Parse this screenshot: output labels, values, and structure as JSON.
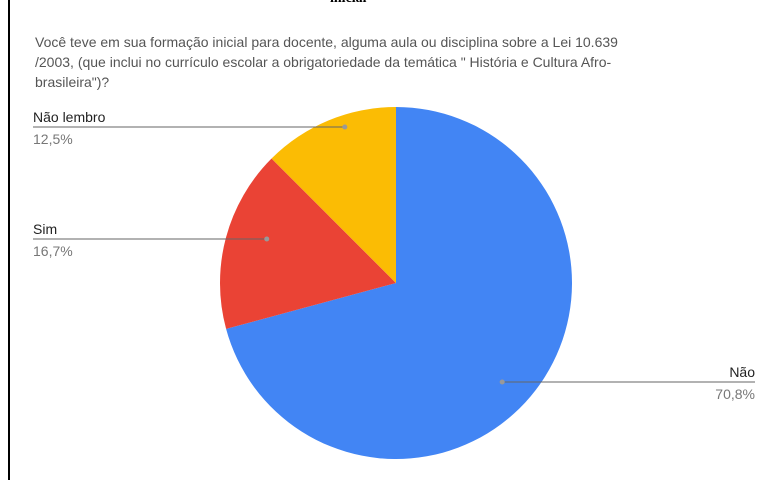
{
  "header": {
    "cut_text": "inicial"
  },
  "chart_data": {
    "type": "pie",
    "title": [
      " Você teve em sua formação inicial para docente, alguma aula ou disciplina sobre a Lei 10.639",
      "/2003, (que inclui no currículo escolar a obrigatoriedade da temática \" História e Cultura Afro-",
      "brasileira\")?"
    ],
    "categories": [
      "Não",
      "Sim",
      "Não lembro"
    ],
    "values": [
      70.8,
      16.7,
      12.5
    ],
    "value_labels": [
      "70,8%",
      "16,7%",
      "12,5%"
    ],
    "colors": [
      "#4285f4",
      "#ea4335",
      "#fbbc04"
    ]
  }
}
